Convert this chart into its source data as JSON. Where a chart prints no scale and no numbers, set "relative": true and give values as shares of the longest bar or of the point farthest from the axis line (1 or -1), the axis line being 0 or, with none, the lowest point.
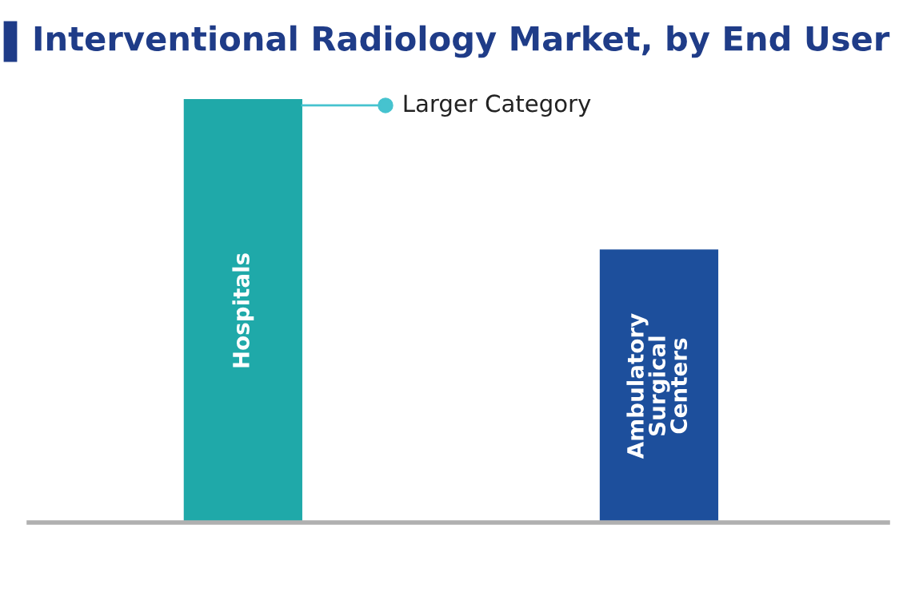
{
  "chart_data": {
    "type": "bar",
    "relative": true,
    "title": "Interventional Radiology Market, by End User",
    "categories": [
      "Hospitals",
      "Ambulatory\nSurgical\nCenters"
    ],
    "values": [
      1,
      0.645
    ],
    "colors": [
      "#1fa9a9",
      "#1d4f9c"
    ],
    "annotations": [
      "Larger Category"
    ],
    "legend": false
  }
}
